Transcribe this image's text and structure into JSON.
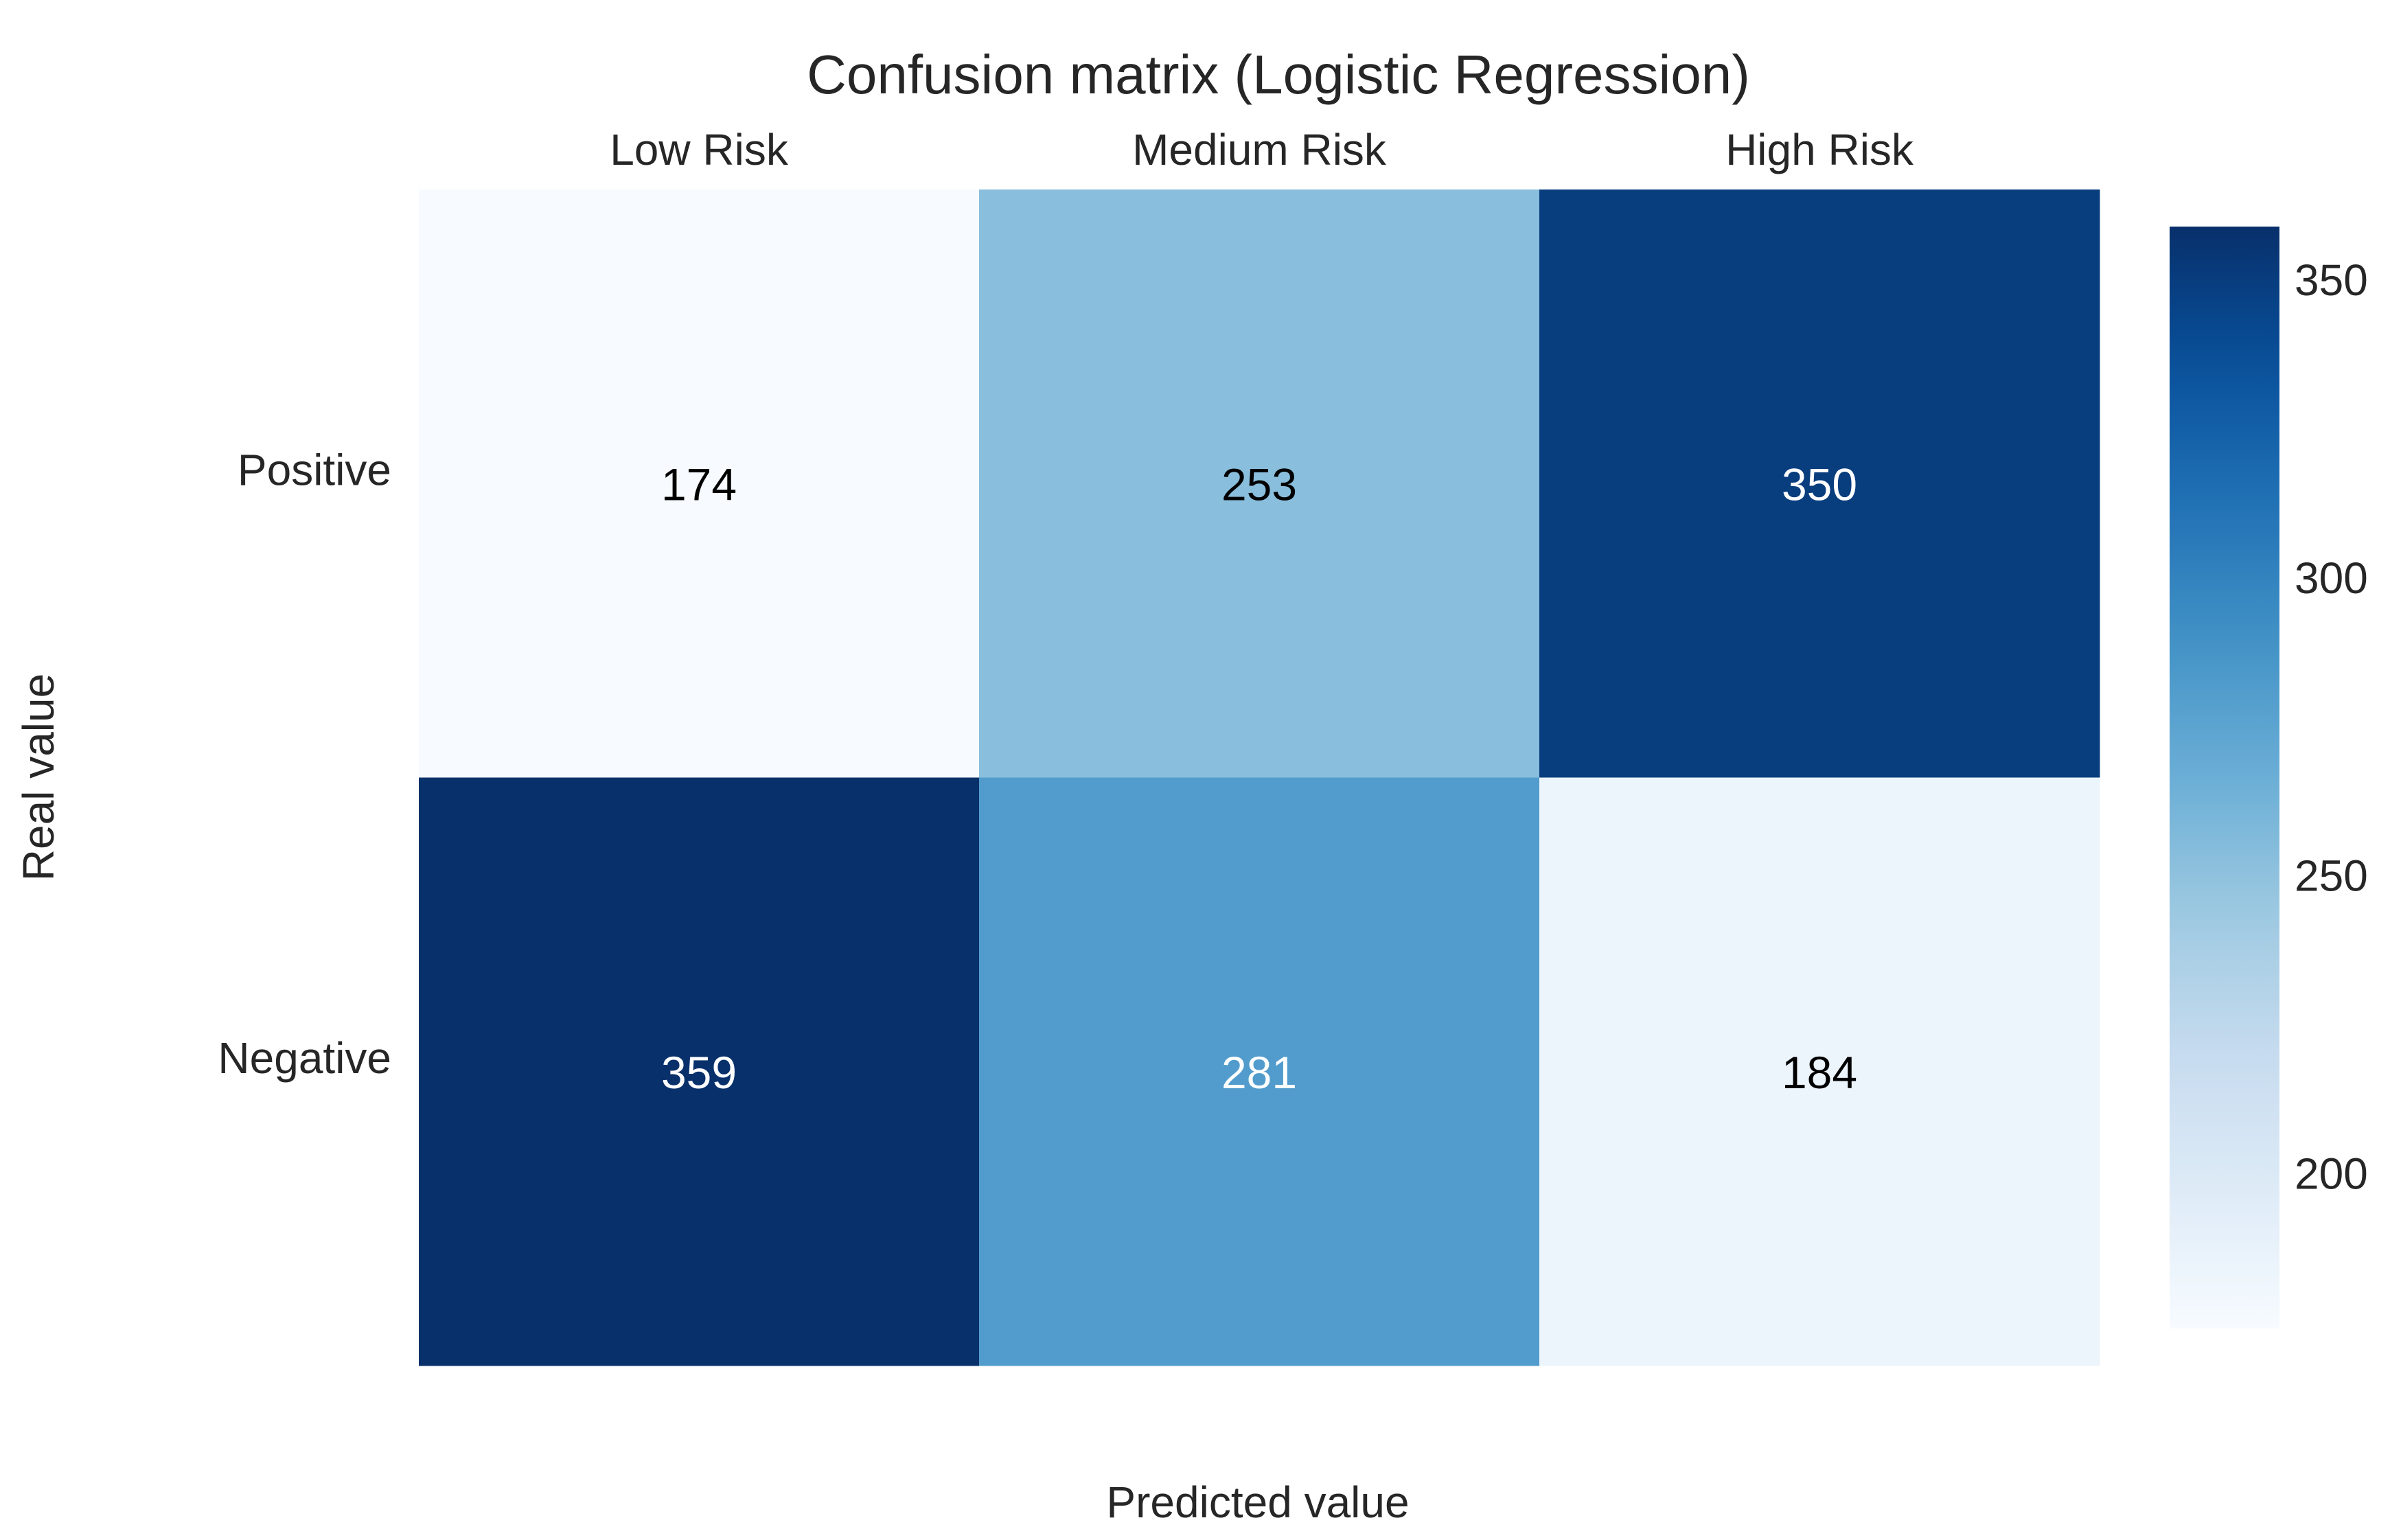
{
  "chart_data": {
    "type": "heatmap",
    "title": "Confusion matrix (Logistic Regression)",
    "xlabel": "Predicted value",
    "ylabel": "Real value",
    "columns": [
      "Low Risk",
      "Medium Risk",
      "High Risk"
    ],
    "rows": [
      "Positive",
      "Negative"
    ],
    "values": [
      [
        174,
        253,
        350
      ],
      [
        359,
        281,
        184
      ]
    ],
    "colormap": "Blues",
    "colorbar": {
      "min": 174,
      "max": 359,
      "ticks": [
        "200",
        "250",
        "300",
        "350"
      ],
      "tick_values": [
        200,
        250,
        300,
        350
      ]
    },
    "grid": false,
    "legend": "colorbar-right"
  }
}
